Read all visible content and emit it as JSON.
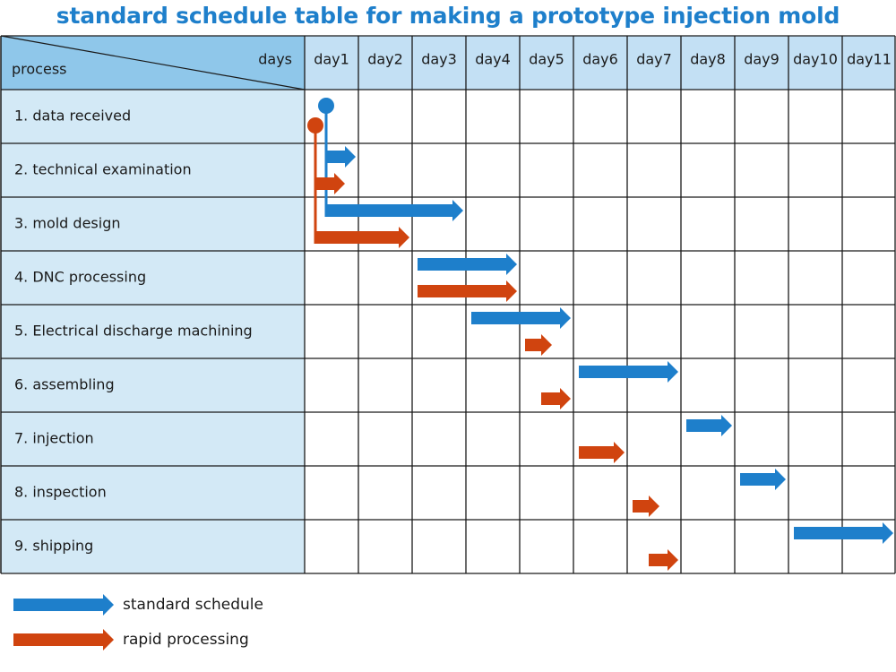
{
  "title": "standard schedule table for making a prototype injection mold",
  "header": {
    "corner_days": "days",
    "corner_process": "process"
  },
  "days": [
    "day1",
    "day2",
    "day3",
    "day4",
    "day5",
    "day6",
    "day7",
    "day8",
    "day9",
    "day10",
    "day11"
  ],
  "processes": [
    "1. data received",
    "2. technical examination",
    "3. mold design",
    "4. DNC processing",
    "5. Electrical discharge machining",
    "6. assembling",
    "7. injection",
    "8. inspection",
    "9. shipping"
  ],
  "legend": [
    {
      "label": "standard schedule",
      "color": "#1e7fcb"
    },
    {
      "label": "rapid processing",
      "color": "#d0440f"
    }
  ],
  "colors": {
    "standard": "#1e7fcb",
    "rapid": "#d0440f",
    "header_fill": "#8fc7ea",
    "day_header_fill": "#c3e0f4",
    "row_label_fill": "#d3e9f6",
    "grid": "#1a1a1a"
  },
  "chart_data": {
    "type": "gantt",
    "series": [
      {
        "name": "standard schedule",
        "color": "#1e7fcb",
        "tasks": [
          {
            "process": "1. data received",
            "start_day": 1.4,
            "end_day": 1.4,
            "marker": "milestone"
          },
          {
            "process": "2. technical examination",
            "start_day": 1.4,
            "end_day": 1.95
          },
          {
            "process": "3. mold design",
            "start_day": 1.4,
            "end_day": 3.95
          },
          {
            "process": "4. DNC processing",
            "start_day": 3.1,
            "end_day": 4.95
          },
          {
            "process": "5. Electrical discharge machining",
            "start_day": 4.1,
            "end_day": 5.95
          },
          {
            "process": "6. assembling",
            "start_day": 6.1,
            "end_day": 7.95
          },
          {
            "process": "7. injection",
            "start_day": 8.1,
            "end_day": 8.95
          },
          {
            "process": "8. inspection",
            "start_day": 9.1,
            "end_day": 9.95
          },
          {
            "process": "9. shipping",
            "start_day": 10.1,
            "end_day": 11.95
          }
        ]
      },
      {
        "name": "rapid processing",
        "color": "#d0440f",
        "tasks": [
          {
            "process": "1. data received",
            "start_day": 1.2,
            "end_day": 1.2,
            "marker": "milestone"
          },
          {
            "process": "2. technical examination",
            "start_day": 1.2,
            "end_day": 1.75
          },
          {
            "process": "3. mold design",
            "start_day": 1.2,
            "end_day": 2.95
          },
          {
            "process": "4. DNC processing",
            "start_day": 3.1,
            "end_day": 4.95
          },
          {
            "process": "5. Electrical discharge machining",
            "start_day": 5.1,
            "end_day": 5.6
          },
          {
            "process": "6. assembling",
            "start_day": 5.4,
            "end_day": 5.95
          },
          {
            "process": "7. injection",
            "start_day": 6.1,
            "end_day": 6.95
          },
          {
            "process": "8. inspection",
            "start_day": 7.1,
            "end_day": 7.6
          },
          {
            "process": "9. shipping",
            "start_day": 7.4,
            "end_day": 7.95
          }
        ]
      }
    ]
  }
}
